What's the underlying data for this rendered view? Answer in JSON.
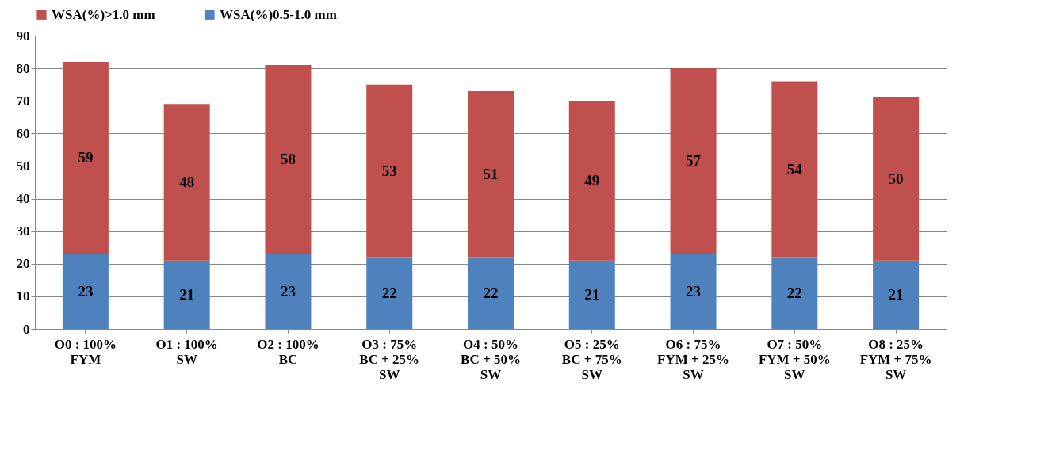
{
  "chart_data": {
    "type": "bar",
    "stacked": true,
    "data_labels": true,
    "grid": "y",
    "legend": "top",
    "categories": [
      "O0 : 100% FYM",
      "O1 : 100% SW",
      "O2 : 100% BC",
      "O3 : 75% BC + 25% SW",
      "O4 : 50% BC + 50% SW",
      "O5 : 25% BC + 75% SW",
      "O6 : 75% FYM + 25% SW",
      "O7 : 50% FYM + 50% SW",
      "O8 : 25% FYM + 75% SW"
    ],
    "series": [
      {
        "name": "WSA(%)0.5-1.0 mm",
        "color": "#4f81bd",
        "values": [
          23,
          21,
          23,
          22,
          22,
          21,
          23,
          22,
          21
        ]
      },
      {
        "name": "WSA(%)>1.0 mm",
        "color": "#c0504d",
        "values": [
          59,
          48,
          58,
          53,
          51,
          49,
          57,
          54,
          50
        ]
      }
    ],
    "ylim": [
      0,
      90
    ],
    "yticks": [
      0,
      10,
      20,
      30,
      40,
      50,
      60,
      70,
      80,
      90
    ]
  }
}
